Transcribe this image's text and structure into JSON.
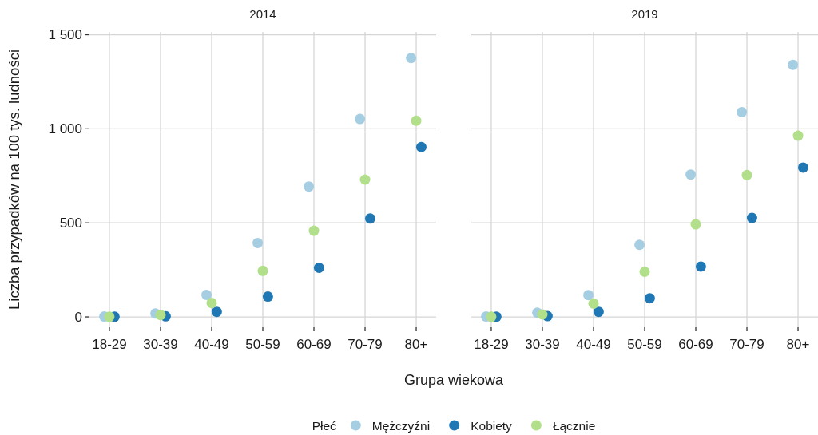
{
  "chart_data": [
    {
      "type": "scatter",
      "title": "2014",
      "xlabel": "Grupa wiekowa",
      "ylabel": "Liczba przypadków na 100 tys. ludności",
      "legend_title": "Płeć",
      "legend": "bottom",
      "grid": true,
      "marker": "circle",
      "categories": [
        "18-29",
        "30-39",
        "40-49",
        "50-59",
        "60-69",
        "70-79",
        "80+"
      ],
      "ylim": [
        -55,
        1515
      ],
      "yticks": [
        0,
        500,
        {
          "value": 1000,
          "label": "1 000"
        },
        {
          "value": 1500,
          "label": "1 500"
        }
      ],
      "series": [
        {
          "name": "Mężczyźni",
          "color": "#a6cee3",
          "values": [
            2,
            18,
            117,
            393,
            693,
            1052,
            1376
          ]
        },
        {
          "name": "Kobiety",
          "color": "#1f78b4",
          "values": [
            1,
            3,
            27,
            108,
            261,
            523,
            903
          ]
        },
        {
          "name": "Łącznie",
          "color": "#b2df8a",
          "values": [
            1,
            10,
            74,
            245,
            458,
            730,
            1043
          ]
        }
      ]
    },
    {
      "type": "scatter",
      "title": "2019",
      "tick_labels": "x",
      "grid": true,
      "marker": "circle",
      "categories": [
        "18-29",
        "30-39",
        "40-49",
        "50-59",
        "60-69",
        "70-79",
        "80+"
      ],
      "ylim": [
        -55,
        1515
      ],
      "yticks": [
        0,
        500,
        1000,
        1500
      ],
      "series": [
        {
          "color": "#a6cee3",
          "values": [
            2,
            22,
            116,
            383,
            757,
            1089,
            1340
          ]
        },
        {
          "color": "#1f78b4",
          "values": [
            1,
            4,
            27,
            99,
            268,
            526,
            794
          ]
        },
        {
          "color": "#b2df8a",
          "values": [
            1,
            13,
            71,
            240,
            492,
            754,
            963
          ]
        }
      ]
    }
  ]
}
